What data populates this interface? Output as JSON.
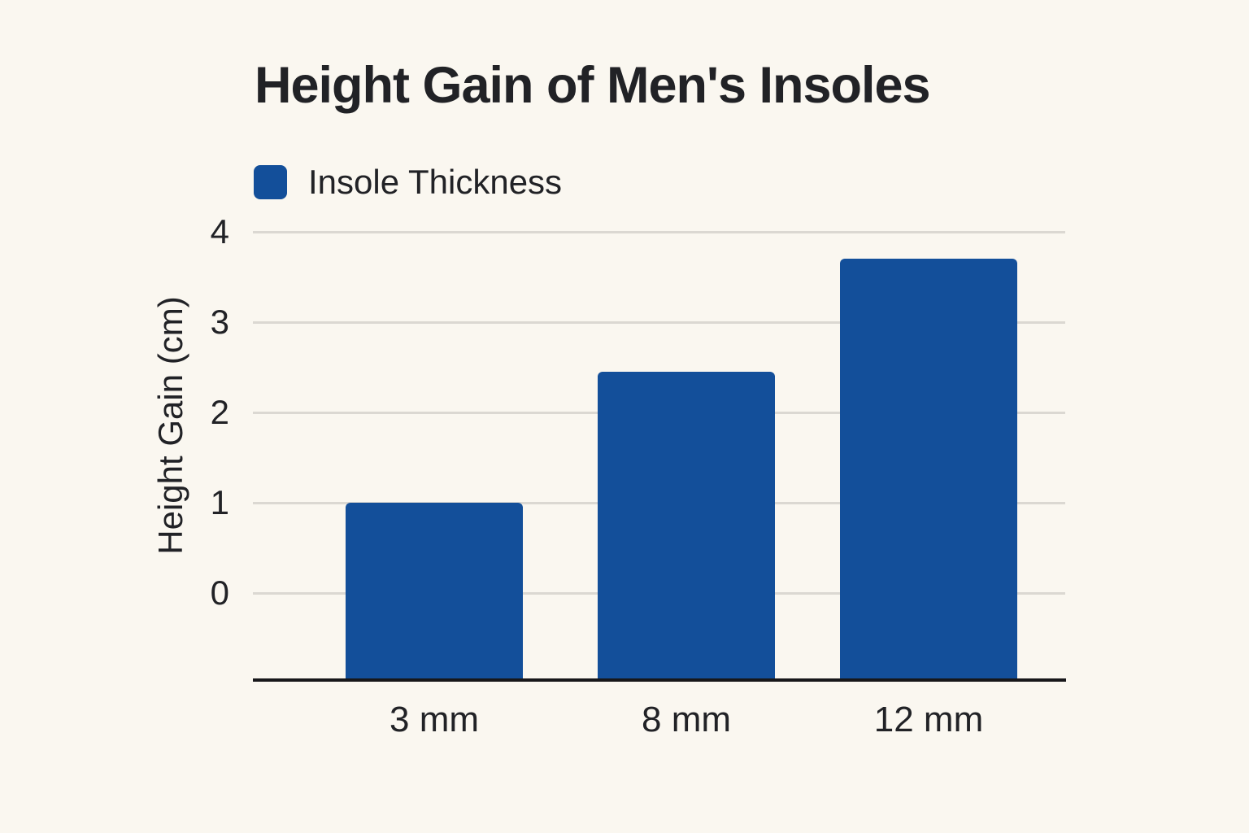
{
  "title": "Height Gain of Men's Insoles",
  "legend": {
    "label": "Insole Thickness"
  },
  "colors": {
    "background": "#faf7f0",
    "bar": "#134f9a",
    "grid": "#dbd8d2",
    "axis": "#17171a",
    "text": "#212226"
  },
  "chart_data": {
    "type": "bar",
    "title": "Height Gain of Men's Insoles",
    "categories": [
      "3 mm",
      "8 mm",
      "12 mm"
    ],
    "values": [
      1,
      2.45,
      3.7
    ],
    "series": [
      {
        "name": "Insole Thickness",
        "values": [
          1,
          2.45,
          3.7
        ]
      }
    ],
    "xlabel": "",
    "ylabel": "Height Gain (cm)",
    "y_ticks": [
      0,
      1,
      2,
      3,
      4
    ],
    "ylim": [
      -1,
      4
    ],
    "grid": "horizontal-only",
    "legend_position": "top-left",
    "bar_color": "#134f9a"
  }
}
